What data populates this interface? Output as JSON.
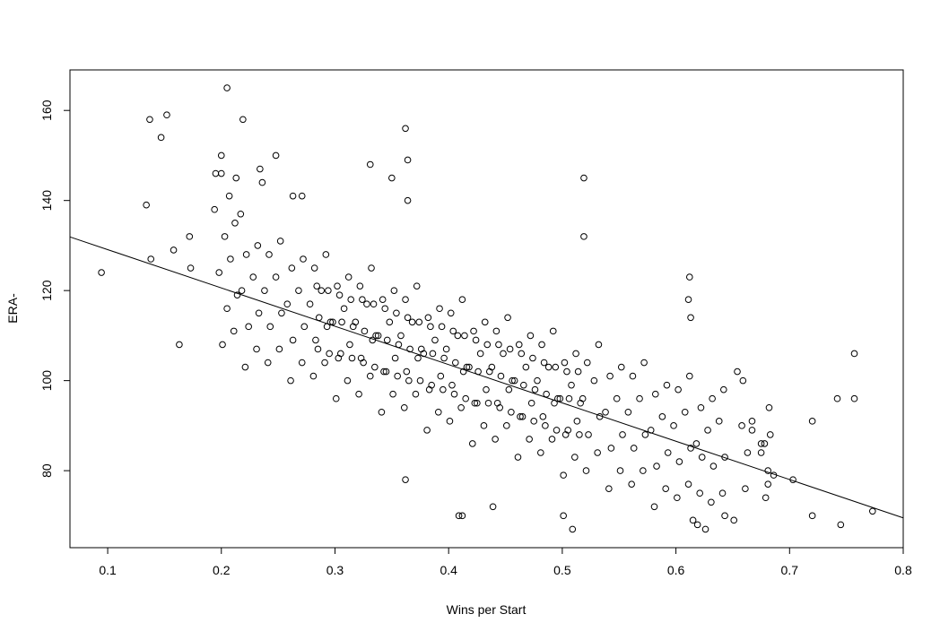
{
  "chart_data": {
    "type": "scatter",
    "title": "",
    "xlabel": "Wins per Start",
    "ylabel": "ERA-",
    "xlim": [
      0.0668,
      0.8
    ],
    "ylim": [
      62.9,
      169
    ],
    "x_ticks": [
      0.1,
      0.2,
      0.3,
      0.4,
      0.5,
      0.6,
      0.7,
      0.8
    ],
    "x_tick_labels": [
      "0.1",
      "0.2",
      "0.3",
      "0.4",
      "0.5",
      "0.6",
      "0.7",
      "0.8"
    ],
    "y_ticks": [
      80,
      100,
      120,
      140,
      160
    ],
    "y_tick_labels": [
      "80",
      "100",
      "120",
      "140",
      "160"
    ],
    "grid": false,
    "marker": "open-circle",
    "point_color": "#000000",
    "regression_line": {
      "intercept": 137.6,
      "slope": -85.1
    },
    "points": [
      [
        0.0945,
        124
      ],
      [
        0.137,
        158
      ],
      [
        0.152,
        159
      ],
      [
        0.147,
        154
      ],
      [
        0.134,
        139
      ],
      [
        0.138,
        127
      ],
      [
        0.158,
        129
      ],
      [
        0.172,
        132
      ],
      [
        0.173,
        125
      ],
      [
        0.163,
        108
      ],
      [
        0.205,
        165
      ],
      [
        0.219,
        158
      ],
      [
        0.2,
        150
      ],
      [
        0.248,
        150
      ],
      [
        0.195,
        146
      ],
      [
        0.2,
        146
      ],
      [
        0.213,
        145
      ],
      [
        0.207,
        141
      ],
      [
        0.194,
        138
      ],
      [
        0.217,
        137
      ],
      [
        0.234,
        147
      ],
      [
        0.236,
        144
      ],
      [
        0.263,
        141
      ],
      [
        0.271,
        141
      ],
      [
        0.331,
        148
      ],
      [
        0.35,
        145
      ],
      [
        0.362,
        156
      ],
      [
        0.364,
        149
      ],
      [
        0.364,
        140
      ],
      [
        0.519,
        145
      ],
      [
        0.519,
        132
      ],
      [
        0.409,
        70
      ],
      [
        0.412,
        70
      ],
      [
        0.439,
        72
      ],
      [
        0.362,
        78
      ],
      [
        0.509,
        67
      ],
      [
        0.501,
        70
      ],
      [
        0.626,
        67
      ],
      [
        0.615,
        69
      ],
      [
        0.619,
        68
      ],
      [
        0.643,
        70
      ],
      [
        0.651,
        69
      ],
      [
        0.757,
        106
      ],
      [
        0.742,
        96
      ],
      [
        0.757,
        96
      ],
      [
        0.72,
        91
      ],
      [
        0.703,
        78
      ],
      [
        0.773,
        71
      ],
      [
        0.745,
        68
      ],
      [
        0.72,
        70
      ],
      [
        0.686,
        79
      ],
      [
        0.682,
        94
      ],
      [
        0.683,
        88
      ],
      [
        0.679,
        74
      ],
      [
        0.681,
        77
      ],
      [
        0.675,
        86
      ],
      [
        0.675,
        84
      ],
      [
        0.667,
        91
      ],
      [
        0.667,
        89
      ],
      [
        0.659,
        100
      ],
      [
        0.654,
        102
      ],
      [
        0.612,
        123
      ],
      [
        0.611,
        118
      ],
      [
        0.613,
        114
      ],
      [
        0.201,
        108
      ],
      [
        0.205,
        116
      ],
      [
        0.198,
        124
      ],
      [
        0.203,
        132
      ],
      [
        0.211,
        111
      ],
      [
        0.214,
        119
      ],
      [
        0.208,
        127
      ],
      [
        0.212,
        135
      ],
      [
        0.221,
        103
      ],
      [
        0.224,
        112
      ],
      [
        0.218,
        120
      ],
      [
        0.222,
        128
      ],
      [
        0.231,
        107
      ],
      [
        0.233,
        115
      ],
      [
        0.228,
        123
      ],
      [
        0.232,
        130
      ],
      [
        0.241,
        104
      ],
      [
        0.243,
        112
      ],
      [
        0.238,
        120
      ],
      [
        0.242,
        128
      ],
      [
        0.251,
        107
      ],
      [
        0.253,
        115
      ],
      [
        0.248,
        123
      ],
      [
        0.252,
        131
      ],
      [
        0.261,
        100
      ],
      [
        0.263,
        109
      ],
      [
        0.258,
        117
      ],
      [
        0.262,
        125
      ],
      [
        0.271,
        104
      ],
      [
        0.273,
        112
      ],
      [
        0.268,
        120
      ],
      [
        0.272,
        127
      ],
      [
        0.281,
        101
      ],
      [
        0.283,
        109
      ],
      [
        0.278,
        117
      ],
      [
        0.282,
        125
      ],
      [
        0.291,
        104
      ],
      [
        0.293,
        112
      ],
      [
        0.288,
        120
      ],
      [
        0.292,
        128
      ],
      [
        0.301,
        96
      ],
      [
        0.303,
        105
      ],
      [
        0.298,
        113
      ],
      [
        0.302,
        121
      ],
      [
        0.311,
        100
      ],
      [
        0.313,
        108
      ],
      [
        0.308,
        116
      ],
      [
        0.312,
        123
      ],
      [
        0.321,
        97
      ],
      [
        0.323,
        105
      ],
      [
        0.318,
        113
      ],
      [
        0.322,
        121
      ],
      [
        0.331,
        101
      ],
      [
        0.333,
        109
      ],
      [
        0.328,
        117
      ],
      [
        0.332,
        125
      ],
      [
        0.341,
        93
      ],
      [
        0.343,
        102
      ],
      [
        0.338,
        110
      ],
      [
        0.342,
        118
      ],
      [
        0.351,
        97
      ],
      [
        0.353,
        105
      ],
      [
        0.348,
        113
      ],
      [
        0.352,
        120
      ],
      [
        0.361,
        94
      ],
      [
        0.363,
        102
      ],
      [
        0.358,
        110
      ],
      [
        0.362,
        118
      ],
      [
        0.371,
        97
      ],
      [
        0.373,
        105
      ],
      [
        0.368,
        113
      ],
      [
        0.372,
        121
      ],
      [
        0.381,
        89
      ],
      [
        0.383,
        98
      ],
      [
        0.378,
        106
      ],
      [
        0.382,
        114
      ],
      [
        0.391,
        93
      ],
      [
        0.393,
        101
      ],
      [
        0.388,
        109
      ],
      [
        0.392,
        116
      ],
      [
        0.401,
        91
      ],
      [
        0.403,
        99
      ],
      [
        0.398,
        107
      ],
      [
        0.402,
        115
      ],
      [
        0.411,
        94
      ],
      [
        0.413,
        102
      ],
      [
        0.408,
        110
      ],
      [
        0.412,
        118
      ],
      [
        0.421,
        86
      ],
      [
        0.423,
        95
      ],
      [
        0.418,
        103
      ],
      [
        0.422,
        111
      ],
      [
        0.431,
        90
      ],
      [
        0.433,
        98
      ],
      [
        0.428,
        106
      ],
      [
        0.432,
        113
      ],
      [
        0.441,
        87
      ],
      [
        0.443,
        95
      ],
      [
        0.438,
        103
      ],
      [
        0.442,
        111
      ],
      [
        0.451,
        90
      ],
      [
        0.453,
        98
      ],
      [
        0.448,
        106
      ],
      [
        0.452,
        114
      ],
      [
        0.461,
        83
      ],
      [
        0.463,
        92
      ],
      [
        0.458,
        100
      ],
      [
        0.462,
        108
      ],
      [
        0.471,
        87
      ],
      [
        0.473,
        95
      ],
      [
        0.468,
        103
      ],
      [
        0.472,
        110
      ],
      [
        0.481,
        84
      ],
      [
        0.483,
        92
      ],
      [
        0.478,
        100
      ],
      [
        0.482,
        108
      ],
      [
        0.491,
        87
      ],
      [
        0.493,
        95
      ],
      [
        0.488,
        103
      ],
      [
        0.492,
        111
      ],
      [
        0.501,
        79
      ],
      [
        0.503,
        88
      ],
      [
        0.498,
        96
      ],
      [
        0.502,
        104
      ],
      [
        0.511,
        83
      ],
      [
        0.513,
        91
      ],
      [
        0.508,
        99
      ],
      [
        0.512,
        106
      ],
      [
        0.521,
        80
      ],
      [
        0.523,
        88
      ],
      [
        0.518,
        96
      ],
      [
        0.522,
        104
      ],
      [
        0.531,
        84
      ],
      [
        0.533,
        92
      ],
      [
        0.528,
        100
      ],
      [
        0.532,
        108
      ],
      [
        0.541,
        76
      ],
      [
        0.543,
        85
      ],
      [
        0.538,
        93
      ],
      [
        0.542,
        101
      ],
      [
        0.551,
        80
      ],
      [
        0.553,
        88
      ],
      [
        0.548,
        96
      ],
      [
        0.552,
        103
      ],
      [
        0.561,
        77
      ],
      [
        0.563,
        85
      ],
      [
        0.558,
        93
      ],
      [
        0.562,
        101
      ],
      [
        0.571,
        80
      ],
      [
        0.573,
        88
      ],
      [
        0.568,
        96
      ],
      [
        0.572,
        104
      ],
      [
        0.581,
        72
      ],
      [
        0.583,
        81
      ],
      [
        0.578,
        89
      ],
      [
        0.582,
        97
      ],
      [
        0.591,
        76
      ],
      [
        0.593,
        84
      ],
      [
        0.588,
        92
      ],
      [
        0.592,
        99
      ],
      [
        0.601,
        74
      ],
      [
        0.603,
        82
      ],
      [
        0.598,
        90
      ],
      [
        0.602,
        98
      ],
      [
        0.611,
        77
      ],
      [
        0.613,
        85
      ],
      [
        0.608,
        93
      ],
      [
        0.612,
        101
      ],
      [
        0.621,
        75
      ],
      [
        0.623,
        83
      ],
      [
        0.618,
        86
      ],
      [
        0.622,
        94
      ],
      [
        0.631,
        73
      ],
      [
        0.633,
        81
      ],
      [
        0.628,
        89
      ],
      [
        0.632,
        96
      ],
      [
        0.641,
        75
      ],
      [
        0.643,
        83
      ],
      [
        0.638,
        91
      ],
      [
        0.642,
        98
      ],
      [
        0.661,
        76
      ],
      [
        0.663,
        84
      ],
      [
        0.658,
        90
      ],
      [
        0.681,
        80
      ],
      [
        0.678,
        86
      ],
      [
        0.285,
        107
      ],
      [
        0.286,
        114
      ],
      [
        0.284,
        121
      ],
      [
        0.295,
        106
      ],
      [
        0.296,
        113
      ],
      [
        0.294,
        120
      ],
      [
        0.305,
        106
      ],
      [
        0.306,
        113
      ],
      [
        0.304,
        119
      ],
      [
        0.315,
        105
      ],
      [
        0.316,
        112
      ],
      [
        0.314,
        118
      ],
      [
        0.325,
        104
      ],
      [
        0.326,
        111
      ],
      [
        0.324,
        118
      ],
      [
        0.335,
        103
      ],
      [
        0.336,
        110
      ],
      [
        0.334,
        117
      ],
      [
        0.345,
        102
      ],
      [
        0.346,
        109
      ],
      [
        0.344,
        116
      ],
      [
        0.355,
        101
      ],
      [
        0.356,
        108
      ],
      [
        0.354,
        115
      ],
      [
        0.365,
        100
      ],
      [
        0.366,
        107
      ],
      [
        0.364,
        114
      ],
      [
        0.375,
        100
      ],
      [
        0.376,
        107
      ],
      [
        0.374,
        113
      ],
      [
        0.385,
        99
      ],
      [
        0.386,
        106
      ],
      [
        0.384,
        112
      ],
      [
        0.395,
        98
      ],
      [
        0.396,
        105
      ],
      [
        0.394,
        112
      ],
      [
        0.405,
        97
      ],
      [
        0.406,
        104
      ],
      [
        0.404,
        111
      ],
      [
        0.415,
        96
      ],
      [
        0.416,
        103
      ],
      [
        0.414,
        110
      ],
      [
        0.425,
        95
      ],
      [
        0.426,
        102
      ],
      [
        0.424,
        109
      ],
      [
        0.435,
        95
      ],
      [
        0.436,
        102
      ],
      [
        0.434,
        108
      ],
      [
        0.445,
        94
      ],
      [
        0.446,
        101
      ],
      [
        0.444,
        108
      ],
      [
        0.455,
        93
      ],
      [
        0.456,
        100
      ],
      [
        0.454,
        107
      ],
      [
        0.465,
        92
      ],
      [
        0.466,
        99
      ],
      [
        0.464,
        106
      ],
      [
        0.475,
        91
      ],
      [
        0.476,
        98
      ],
      [
        0.474,
        105
      ],
      [
        0.485,
        90
      ],
      [
        0.486,
        97
      ],
      [
        0.484,
        104
      ],
      [
        0.495,
        89
      ],
      [
        0.496,
        96
      ],
      [
        0.494,
        103
      ],
      [
        0.505,
        89
      ],
      [
        0.506,
        96
      ],
      [
        0.504,
        102
      ],
      [
        0.515,
        88
      ],
      [
        0.516,
        95
      ],
      [
        0.514,
        102
      ]
    ]
  }
}
